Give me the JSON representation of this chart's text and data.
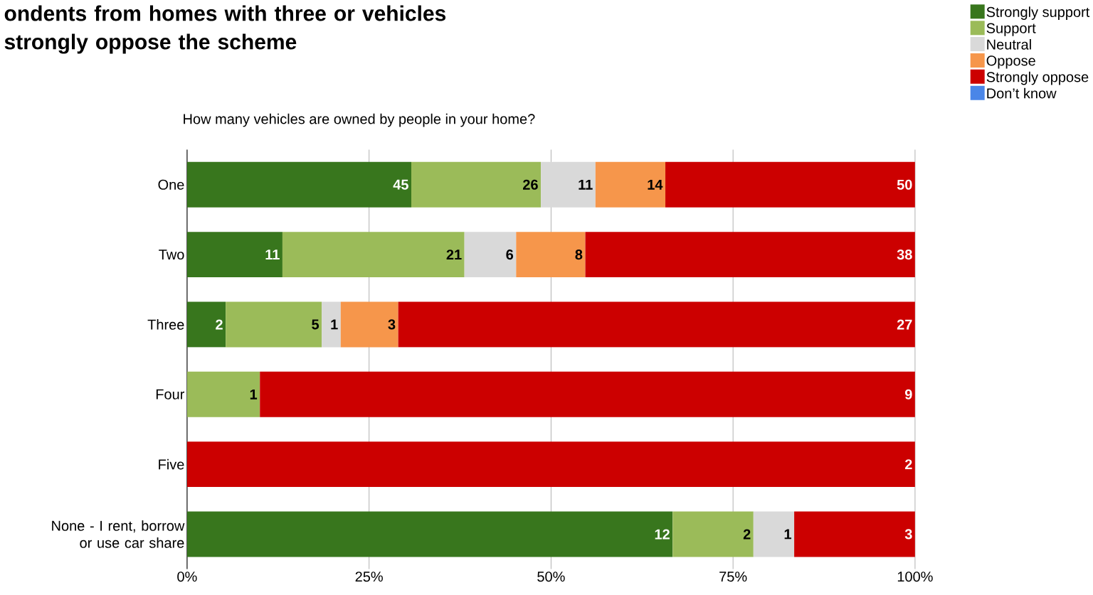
{
  "chart_data": {
    "type": "bar",
    "orientation": "horizontal",
    "stacked": true,
    "title": "ondents from homes with three or vehicles strongly oppose the scheme",
    "subtitle": "How many vehicles are owned by people in your home?",
    "categories": [
      "One",
      "Two",
      "Three",
      "Four",
      "Five",
      "None - I rent, borrow or use car share"
    ],
    "series": [
      {
        "name": "Strongly support",
        "color": "#38761d",
        "values": [
          30.8,
          13.1,
          5.3,
          null,
          null,
          66.7
        ]
      },
      {
        "name": "Support",
        "color": "#9bbb59",
        "values": [
          17.8,
          25.0,
          13.2,
          10,
          null,
          11.1
        ]
      },
      {
        "name": "Neutral",
        "color": "#d9d9d9",
        "values": [
          7.5,
          7.1,
          2.6,
          null,
          null,
          5.6
        ]
      },
      {
        "name": "Oppose",
        "color": "#f6964b",
        "values": [
          9.6,
          9.5,
          7.9,
          null,
          null,
          null
        ]
      },
      {
        "name": "Strongly oppose",
        "color": "#cc0000",
        "values": [
          34.3,
          45.3,
          71.0,
          90,
          100,
          16.6
        ]
      },
      {
        "name": "Don’t know",
        "color": "#4a86e8",
        "values": [
          null,
          null,
          null,
          null,
          null,
          null
        ]
      }
    ],
    "annotations": [
      {
        "text": "45",
        "x": 30.8,
        "y": "One"
      },
      {
        "text": "26",
        "x": 48.6,
        "y": "One"
      },
      {
        "text": "11",
        "x": 56.1,
        "y": "One"
      },
      {
        "text": "14",
        "x": 65.7,
        "y": "One"
      },
      {
        "text": "50",
        "x": 100,
        "y": "One"
      },
      {
        "text": "11",
        "x": 13.1,
        "y": "Two"
      },
      {
        "text": "21",
        "x": 38.1,
        "y": "Two"
      },
      {
        "text": "6",
        "x": 45.2,
        "y": "Two"
      },
      {
        "text": "8",
        "x": 54.7,
        "y": "Two"
      },
      {
        "text": "38",
        "x": 100,
        "y": "Two"
      },
      {
        "text": "2",
        "x": 5.3,
        "y": "Three"
      },
      {
        "text": "5",
        "x": 18.5,
        "y": "Three"
      },
      {
        "text": "1",
        "x": 21.1,
        "y": "Three"
      },
      {
        "text": "3",
        "x": 29.0,
        "y": "Three"
      },
      {
        "text": "27",
        "x": 100,
        "y": "Three"
      },
      {
        "text": "1",
        "x": 10,
        "y": "Four"
      },
      {
        "text": "9",
        "x": 100,
        "y": "Four"
      },
      {
        "text": "2",
        "x": 100,
        "y": "Five"
      },
      {
        "text": "12",
        "x": 66.7,
        "y": "None - I rent, borrow or use car share"
      },
      {
        "text": "2",
        "x": 77.8,
        "y": "None - I rent, borrow or use car share"
      },
      {
        "text": "1",
        "x": 83.4,
        "y": "None - I rent, borrow or use car share"
      },
      {
        "text": "3",
        "x": 100,
        "y": "None - I rent, borrow or use car share"
      }
    ],
    "xlim": [
      0,
      100
    ],
    "xticks": [
      {
        "value": 0,
        "label": "0%"
      },
      {
        "value": 25,
        "label": "25%"
      },
      {
        "value": 50,
        "label": "50%"
      },
      {
        "value": 75,
        "label": "75%"
      },
      {
        "value": 100,
        "label": "100%"
      }
    ],
    "grid": "x",
    "legend": "top right"
  }
}
